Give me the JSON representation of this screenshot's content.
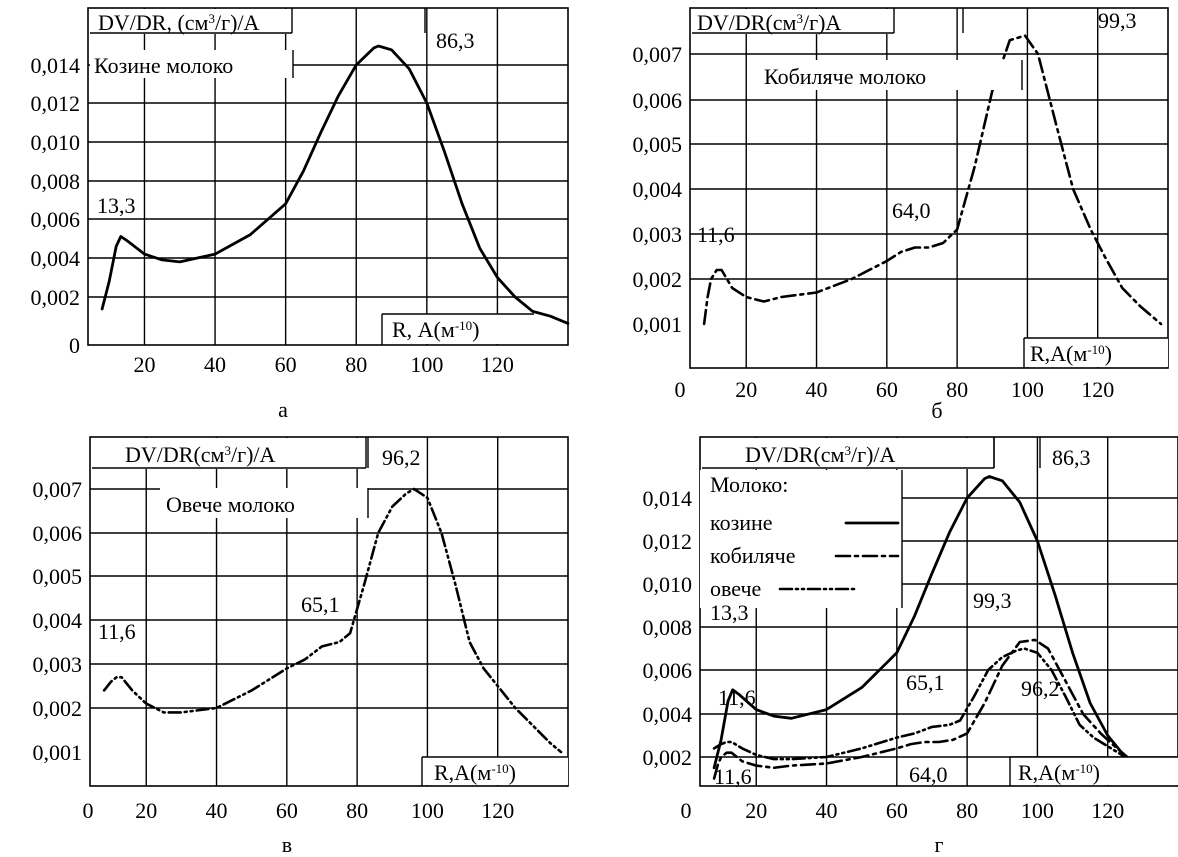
{
  "chart_data": [
    {
      "type": "line",
      "panel_label": "а",
      "ylabel": "DV/DR, (см³/г)/А",
      "xlabel": "R, А(м⁻¹⁰)",
      "legend_title": "Козине молоко",
      "xlim": [
        4,
        140
      ],
      "x_ticks": [
        20,
        40,
        60,
        80,
        100,
        120
      ],
      "x_tick_labels": [
        "20",
        "40",
        "60",
        "80",
        "100",
        "120"
      ],
      "y_ticks": [
        0,
        0.002,
        0.004,
        0.006,
        0.008,
        0.01,
        0.012,
        0.014
      ],
      "y_tick_labels": [
        "0",
        "0,002",
        "0,004",
        "0,006",
        "0,008",
        "0,010",
        "0,012",
        "0,014"
      ],
      "annotations": [
        {
          "text": "13,3",
          "x": 13.3,
          "y": 0.0051
        },
        {
          "text": "86,3",
          "x": 86.3,
          "y": 0.015
        }
      ],
      "series": [
        {
          "style": "solid",
          "x": [
            8,
            10,
            12,
            13.3,
            15,
            20,
            25,
            30,
            40,
            50,
            60,
            65,
            70,
            75,
            80,
            85,
            86.3,
            90,
            95,
            100,
            105,
            110,
            115,
            120,
            125,
            130,
            135,
            140
          ],
          "y": [
            0.0015,
            0.0028,
            0.0046,
            0.0051,
            0.0049,
            0.0042,
            0.0039,
            0.0038,
            0.0042,
            0.0052,
            0.0068,
            0.0085,
            0.0105,
            0.0124,
            0.014,
            0.0149,
            0.015,
            0.0148,
            0.0138,
            0.012,
            0.0095,
            0.0068,
            0.0045,
            0.003,
            0.002,
            0.0014,
            0.0012,
            0.0009
          ]
        }
      ]
    },
    {
      "type": "line",
      "panel_label": "б",
      "ylabel": "DV/DR(см³/г)А",
      "xlabel": "R,А(м⁻¹⁰)",
      "legend_title": "Кобиляче молоко",
      "xlim": [
        4,
        140
      ],
      "x_ticks": [
        0,
        20,
        40,
        60,
        80,
        100,
        120
      ],
      "x_tick_labels": [
        "0",
        "20",
        "40",
        "60",
        "80",
        "100",
        "120"
      ],
      "y_ticks": [
        0.001,
        0.002,
        0.003,
        0.004,
        0.005,
        0.006,
        0.007
      ],
      "y_tick_labels": [
        "0,001",
        "0,002",
        "0,003",
        "0,004",
        "0,005",
        "0,006",
        "0,007"
      ],
      "annotations": [
        {
          "text": "11,6",
          "x": 11.6,
          "y": 0.0022
        },
        {
          "text": "64,0",
          "x": 64.0,
          "y": 0.0026
        },
        {
          "text": "99,3",
          "x": 99.3,
          "y": 0.0074
        }
      ],
      "series": [
        {
          "style": "dash-dot",
          "x": [
            8,
            9,
            10,
            11.6,
            13,
            16,
            20,
            25,
            30,
            40,
            50,
            60,
            64,
            68,
            72,
            76,
            80,
            85,
            90,
            95,
            99.3,
            103,
            108,
            113,
            118,
            122,
            127,
            132,
            138
          ],
          "y": [
            0.001,
            0.0016,
            0.002,
            0.0022,
            0.0022,
            0.0018,
            0.0016,
            0.0015,
            0.0016,
            0.0017,
            0.002,
            0.0024,
            0.0026,
            0.0027,
            0.0027,
            0.0028,
            0.0031,
            0.0045,
            0.0062,
            0.0073,
            0.0074,
            0.007,
            0.0055,
            0.004,
            0.0031,
            0.0025,
            0.0018,
            0.0014,
            0.001
          ]
        }
      ]
    },
    {
      "type": "line",
      "panel_label": "в",
      "ylabel": "DV/DR(см³/г)/А",
      "xlabel": "R,А(м⁻¹⁰)",
      "legend_title": "Овече молоко",
      "xlim": [
        4,
        140
      ],
      "x_ticks": [
        0,
        20,
        40,
        60,
        80,
        100,
        120
      ],
      "x_tick_labels": [
        "0",
        "20",
        "40",
        "60",
        "80",
        "100",
        "120"
      ],
      "y_ticks": [
        0.001,
        0.002,
        0.003,
        0.004,
        0.005,
        0.006,
        0.007
      ],
      "y_tick_labels": [
        "0,001",
        "0,002",
        "0,003",
        "0,004",
        "0,005",
        "0,006",
        "0,007"
      ],
      "annotations": [
        {
          "text": "11,6",
          "x": 11.6,
          "y": 0.0027
        },
        {
          "text": "65,1",
          "x": 65.1,
          "y": 0.0034
        },
        {
          "text": "96,2",
          "x": 96.2,
          "y": 0.007
        }
      ],
      "series": [
        {
          "style": "dash-dot-dot",
          "x": [
            8,
            10,
            11.6,
            13,
            16,
            20,
            25,
            30,
            40,
            50,
            60,
            65.1,
            70,
            75,
            78,
            82,
            86,
            90,
            94,
            96.2,
            100,
            104,
            108,
            112,
            116,
            120,
            125,
            130,
            135,
            138
          ],
          "y": [
            0.0024,
            0.0026,
            0.0027,
            0.0027,
            0.0024,
            0.0021,
            0.0019,
            0.0019,
            0.002,
            0.0024,
            0.0029,
            0.0031,
            0.0034,
            0.0035,
            0.0037,
            0.0048,
            0.006,
            0.0066,
            0.0069,
            0.007,
            0.0068,
            0.006,
            0.0048,
            0.0035,
            0.0029,
            0.0025,
            0.002,
            0.0016,
            0.0012,
            0.001
          ]
        }
      ]
    },
    {
      "type": "line",
      "panel_label": "г",
      "ylabel": "DV/DR(см³/г)/А",
      "xlabel": "R,А(м⁻¹⁰)",
      "legend_title": "Молоко:",
      "xlim": [
        4,
        140
      ],
      "x_ticks": [
        0,
        20,
        40,
        60,
        80,
        100,
        120
      ],
      "x_tick_labels": [
        "0",
        "20",
        "40",
        "60",
        "80",
        "100",
        "120"
      ],
      "y_ticks": [
        0.002,
        0.004,
        0.006,
        0.008,
        0.01,
        0.012,
        0.014
      ],
      "y_tick_labels": [
        "0,002",
        "0,004",
        "0,006",
        "0,008",
        "0,010",
        "0,012",
        "0,014"
      ],
      "annotations": [
        {
          "text": "13,3",
          "x": 13.3,
          "y": 0.0051
        },
        {
          "text": "86,3",
          "x": 86.3,
          "y": 0.015
        },
        {
          "text": "11,6",
          "x": 11.6,
          "y": 0.0027
        },
        {
          "text": "11,6",
          "x": 11.6,
          "y": 0.0022
        },
        {
          "text": "65,1",
          "x": 65.1,
          "y": 0.0034
        },
        {
          "text": "64,0",
          "x": 64.0,
          "y": 0.0026
        },
        {
          "text": "99,3",
          "x": 99.3,
          "y": 0.0074
        },
        {
          "text": "96,2",
          "x": 96.2,
          "y": 0.007
        }
      ],
      "series": [
        {
          "name": "козине",
          "style": "solid",
          "x": [
            8,
            10,
            12,
            13.3,
            15,
            20,
            25,
            30,
            40,
            50,
            60,
            65,
            70,
            75,
            80,
            85,
            86.3,
            90,
            95,
            100,
            105,
            110,
            115,
            120,
            125,
            130,
            135,
            140
          ],
          "y": [
            0.0015,
            0.0028,
            0.0046,
            0.0051,
            0.0049,
            0.0042,
            0.0039,
            0.0038,
            0.0042,
            0.0052,
            0.0068,
            0.0085,
            0.0105,
            0.0124,
            0.014,
            0.0149,
            0.015,
            0.0148,
            0.0138,
            0.012,
            0.0095,
            0.0068,
            0.0045,
            0.003,
            0.002,
            0.0014,
            0.0012,
            0.0009
          ]
        },
        {
          "name": "кобиляче",
          "style": "dash-dot",
          "x": [
            8,
            9,
            10,
            11.6,
            13,
            16,
            20,
            25,
            30,
            40,
            50,
            60,
            64,
            68,
            72,
            76,
            80,
            85,
            90,
            95,
            99.3,
            103,
            108,
            113,
            118,
            122,
            127,
            132,
            138
          ],
          "y": [
            0.001,
            0.0016,
            0.002,
            0.0022,
            0.0022,
            0.0018,
            0.0016,
            0.0015,
            0.0016,
            0.0017,
            0.002,
            0.0024,
            0.0026,
            0.0027,
            0.0027,
            0.0028,
            0.0031,
            0.0045,
            0.0062,
            0.0073,
            0.0074,
            0.007,
            0.0055,
            0.004,
            0.0031,
            0.0025,
            0.0018,
            0.0014,
            0.001
          ]
        },
        {
          "name": "овече",
          "style": "dash-dot-dot",
          "x": [
            8,
            10,
            11.6,
            13,
            16,
            20,
            25,
            30,
            40,
            50,
            60,
            65.1,
            70,
            75,
            78,
            82,
            86,
            90,
            94,
            96.2,
            100,
            104,
            108,
            112,
            116,
            120,
            125,
            130,
            135,
            138
          ],
          "y": [
            0.0024,
            0.0026,
            0.0027,
            0.0027,
            0.0024,
            0.0021,
            0.0019,
            0.0019,
            0.002,
            0.0024,
            0.0029,
            0.0031,
            0.0034,
            0.0035,
            0.0037,
            0.0048,
            0.006,
            0.0066,
            0.0069,
            0.007,
            0.0068,
            0.006,
            0.0048,
            0.0035,
            0.0029,
            0.0025,
            0.002,
            0.0016,
            0.0012,
            0.001
          ]
        }
      ]
    }
  ]
}
